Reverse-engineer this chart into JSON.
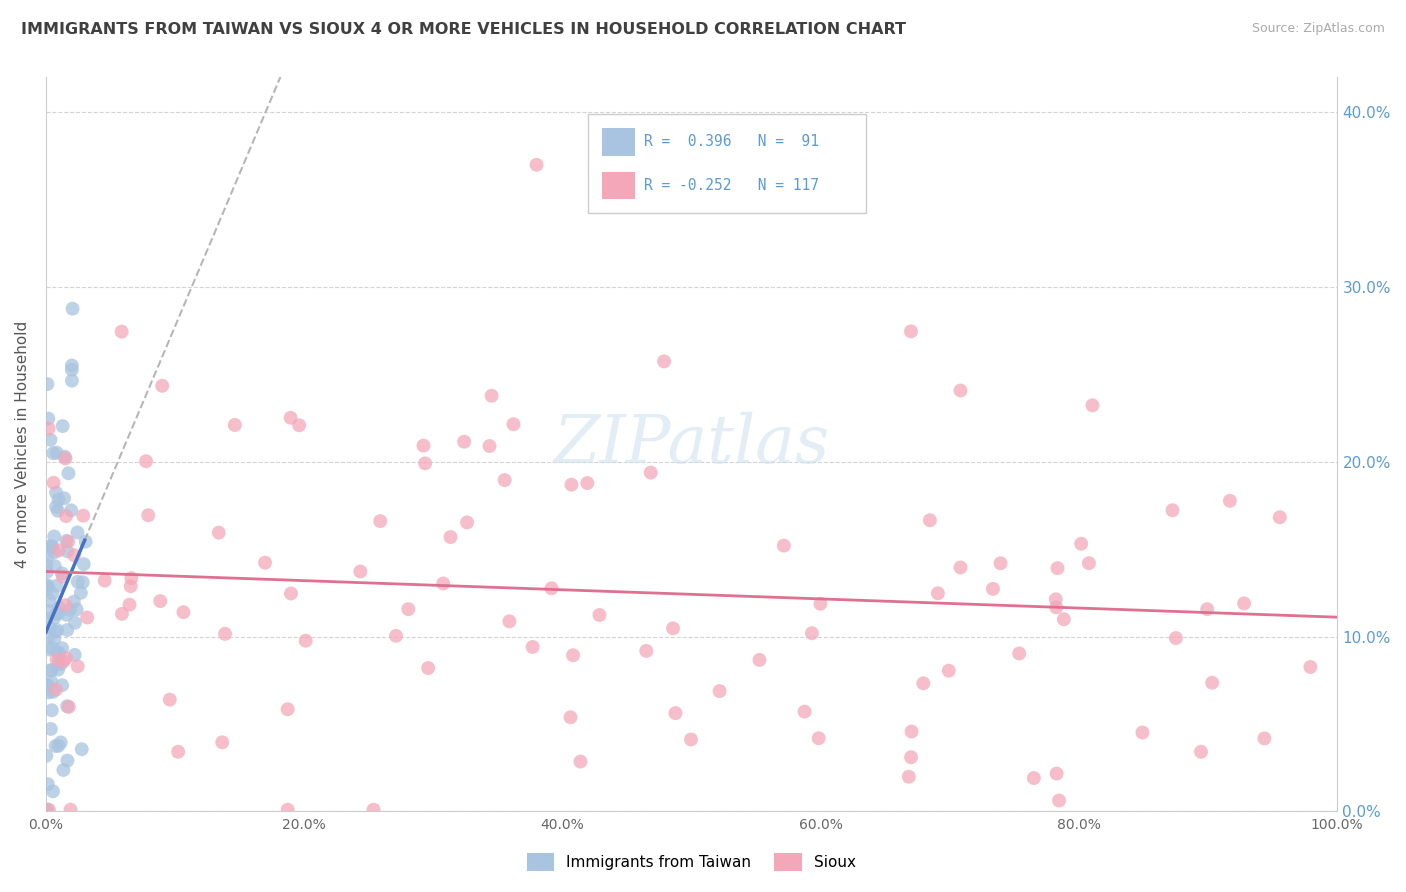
{
  "title": "IMMIGRANTS FROM TAIWAN VS SIOUX 4 OR MORE VEHICLES IN HOUSEHOLD CORRELATION CHART",
  "source": "Source: ZipAtlas.com",
  "ylabel": "4 or more Vehicles in Household",
  "legend_labels": [
    "Immigrants from Taiwan",
    "Sioux"
  ],
  "taiwan_R": 0.396,
  "taiwan_N": 91,
  "sioux_R": -0.252,
  "sioux_N": 117,
  "taiwan_color": "#a8c4e0",
  "sioux_color": "#f4a7b9",
  "taiwan_line_color": "#4472c4",
  "sioux_line_color": "#e07090",
  "bg_color": "#ffffff",
  "grid_color": "#d0d0d0",
  "title_color": "#404040",
  "right_axis_color": "#5b9bd5",
  "xlim": [
    0,
    1.0
  ],
  "ylim": [
    0,
    0.42
  ],
  "xticks": [
    0,
    0.2,
    0.4,
    0.6,
    0.8,
    1.0
  ],
  "xticklabels": [
    "0.0%",
    "20.0%",
    "40.0%",
    "60.0%",
    "80.0%",
    "100.0%"
  ],
  "yticks": [
    0.0,
    0.1,
    0.2,
    0.3,
    0.4
  ],
  "yticklabels_right": [
    "0.0%",
    "10.0%",
    "20.0%",
    "30.0%",
    "40.0%"
  ]
}
